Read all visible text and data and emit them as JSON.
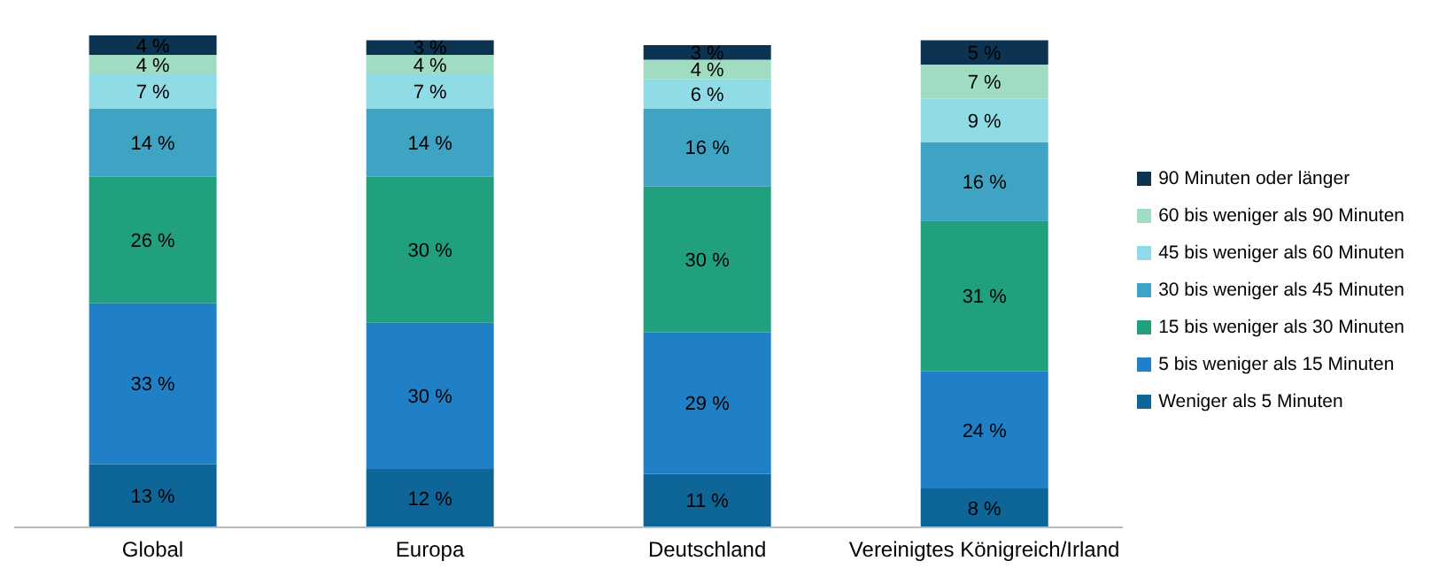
{
  "chart_data": {
    "type": "bar",
    "stacked": true,
    "categories": [
      "Global",
      "Europa",
      "Deutschland",
      "Vereinigtes Königreich/Irland"
    ],
    "series": [
      {
        "name": "Weniger als 5 Minuten",
        "color": "#0e6597",
        "values": [
          13,
          12,
          11,
          8
        ],
        "value_labels": [
          "13 %",
          "12 %",
          "11 %",
          "8 %"
        ]
      },
      {
        "name": "5 bis weniger als 15 Minuten",
        "color": "#1f80c8",
        "values": [
          33,
          30,
          29,
          24
        ],
        "value_labels": [
          "33 %",
          "30 %",
          "29 %",
          "24 %"
        ]
      },
      {
        "name": "15 bis weniger als 30 Minuten",
        "color": "#20a07e",
        "values": [
          26,
          30,
          30,
          31
        ],
        "value_labels": [
          "26 %",
          "30 %",
          "30 %",
          "31 %"
        ]
      },
      {
        "name": "30 bis weniger als 45 Minuten",
        "color": "#3fa3c4",
        "values": [
          14,
          14,
          16,
          16
        ],
        "value_labels": [
          "14 %",
          "14 %",
          "16 %",
          "16 %"
        ]
      },
      {
        "name": "45 bis weniger als 60 Minuten",
        "color": "#8fdbe6",
        "values": [
          7,
          7,
          6,
          9
        ],
        "value_labels": [
          "7 %",
          "7 %",
          "6 %",
          "9 %"
        ]
      },
      {
        "name": "60 bis weniger als 90 Minuten",
        "color": "#a0dcc2",
        "values": [
          4,
          4,
          4,
          7
        ],
        "value_labels": [
          "4 %",
          "4 %",
          "4 %",
          "7 %"
        ]
      },
      {
        "name": "90 Minuten oder länger",
        "color": "#0c3352",
        "values": [
          4,
          3,
          3,
          5
        ],
        "value_labels": [
          "4 %",
          "3 %",
          "3 %",
          "5 %"
        ]
      }
    ],
    "legend": "right",
    "grid": false
  }
}
